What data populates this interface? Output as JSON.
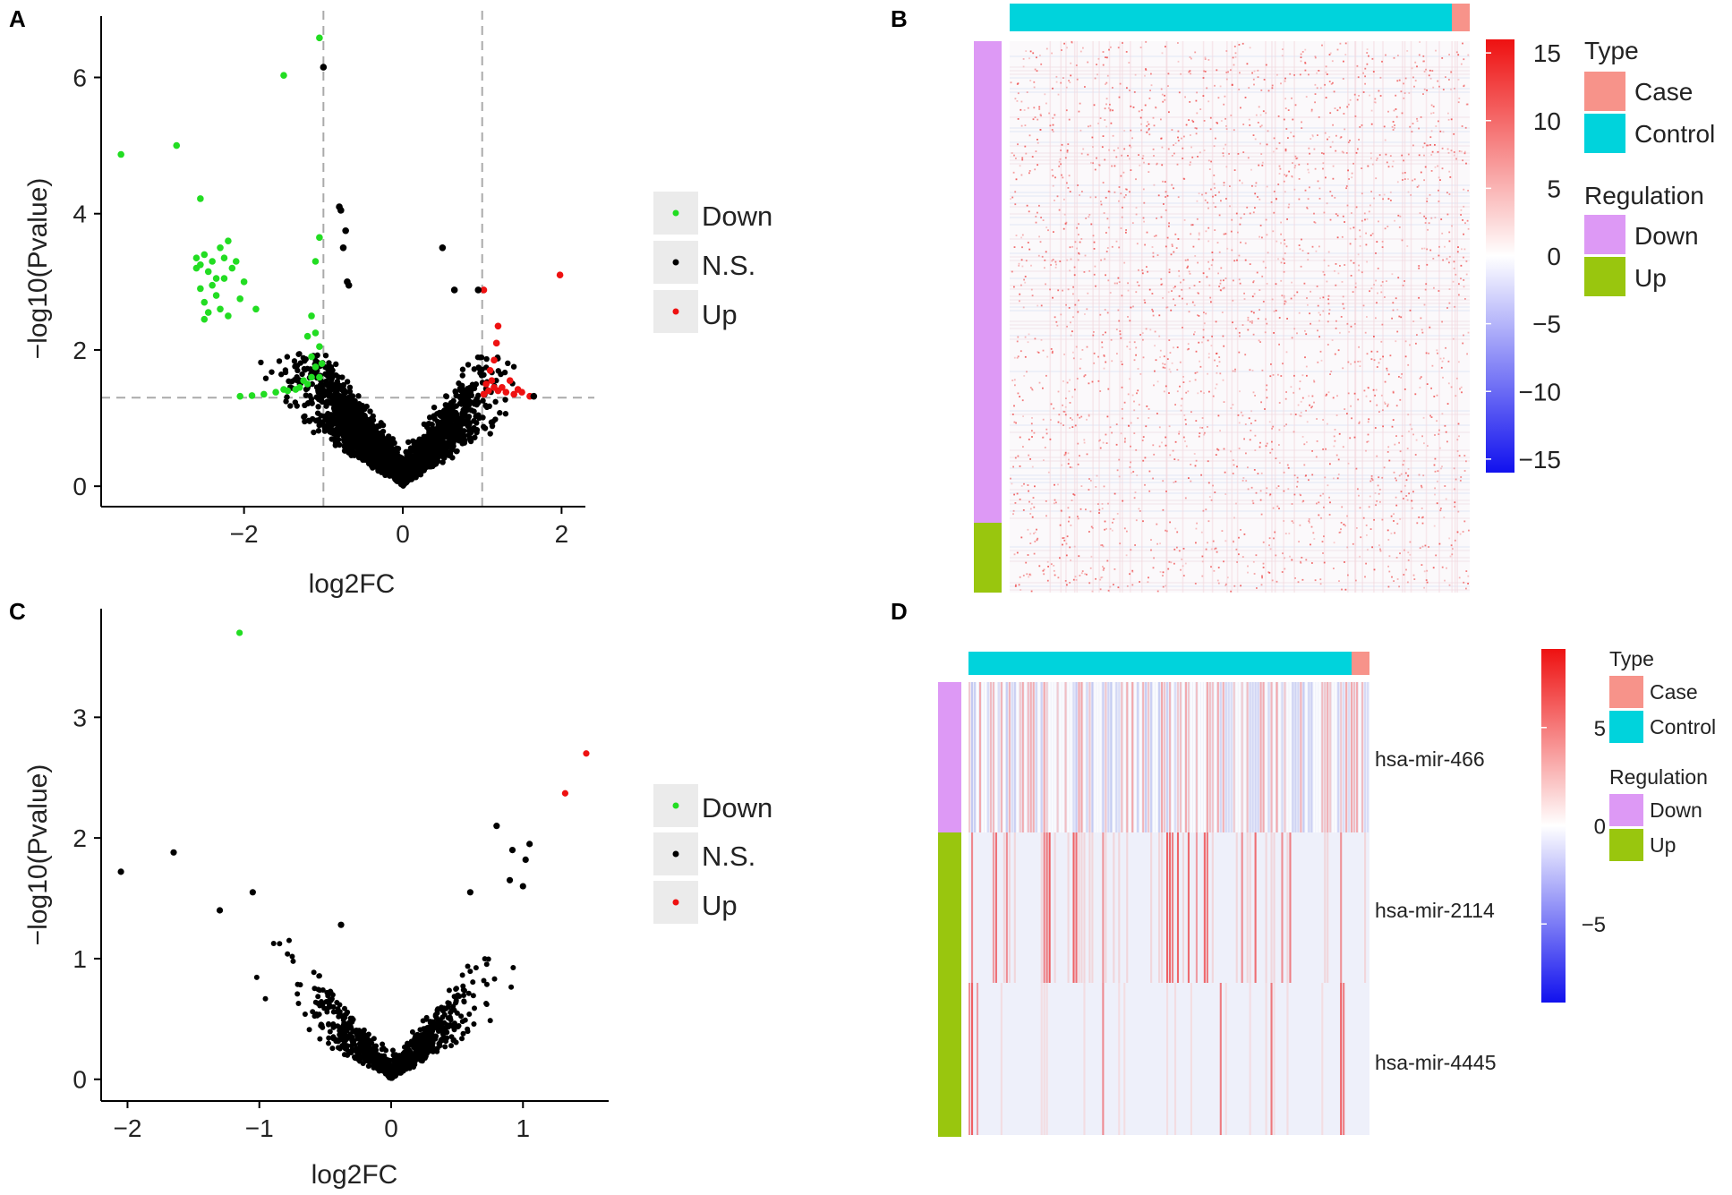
{
  "figure": {
    "panel_labels": [
      "A",
      "B",
      "C",
      "D"
    ]
  },
  "chart_data": [
    {
      "panel": "A",
      "type": "scatter",
      "subtype": "volcano",
      "xlabel": "log2FC",
      "ylabel": "−log10(Pvalue)",
      "xlim": [
        -3.8,
        2.3
      ],
      "ylim": [
        -0.3,
        6.9
      ],
      "xticks": [
        -2,
        0,
        2
      ],
      "yticks": [
        0,
        2,
        4,
        6
      ],
      "xtick_labels": [
        "−2",
        "0",
        "2"
      ],
      "ytick_labels": [
        "0",
        "2",
        "4",
        "6"
      ],
      "thresholds": {
        "log2fc": [
          -1,
          1
        ],
        "neg_log10_p": 1.3
      },
      "legend": {
        "position": "right",
        "entries": [
          {
            "label": "Down",
            "color": "#22dd22"
          },
          {
            "label": "N.S.",
            "color": "#000000"
          },
          {
            "label": "Up",
            "color": "#ee1111"
          }
        ]
      },
      "series": [
        {
          "name": "Down",
          "color": "#22dd22",
          "points": [
            [
              -3.55,
              4.87
            ],
            [
              -2.85,
              5.0
            ],
            [
              -2.55,
              4.22
            ],
            [
              -1.5,
              6.03
            ],
            [
              -1.05,
              6.58
            ],
            [
              -2.6,
              3.35
            ],
            [
              -2.55,
              3.25
            ],
            [
              -2.5,
              3.4
            ],
            [
              -2.45,
              3.15
            ],
            [
              -2.4,
              3.3
            ],
            [
              -2.35,
              3.05
            ],
            [
              -2.3,
              3.5
            ],
            [
              -2.25,
              3.35
            ],
            [
              -2.2,
              3.6
            ],
            [
              -2.15,
              3.2
            ],
            [
              -2.55,
              2.9
            ],
            [
              -2.5,
              2.7
            ],
            [
              -2.45,
              2.55
            ],
            [
              -2.4,
              2.95
            ],
            [
              -2.35,
              2.8
            ],
            [
              -2.3,
              2.6
            ],
            [
              -2.25,
              3.05
            ],
            [
              -2.2,
              2.5
            ],
            [
              -2.1,
              3.3
            ],
            [
              -2.05,
              2.75
            ],
            [
              -2.0,
              3.0
            ],
            [
              -1.85,
              2.6
            ],
            [
              -2.5,
              2.45
            ],
            [
              -2.6,
              3.2
            ],
            [
              -1.1,
              3.3
            ],
            [
              -1.05,
              3.65
            ],
            [
              -1.15,
              2.5
            ],
            [
              -1.2,
              2.2
            ],
            [
              -1.1,
              2.25
            ],
            [
              -1.05,
              2.05
            ],
            [
              -1.15,
              1.9
            ],
            [
              -1.1,
              1.75
            ],
            [
              -1.05,
              1.6
            ],
            [
              -1.2,
              1.5
            ],
            [
              -1.3,
              1.45
            ],
            [
              -1.45,
              1.4
            ],
            [
              -1.6,
              1.38
            ],
            [
              -1.75,
              1.35
            ],
            [
              -1.9,
              1.33
            ],
            [
              -2.05,
              1.32
            ],
            [
              -1.15,
              1.6
            ],
            [
              -1.02,
              1.8
            ],
            [
              -1.25,
              1.55
            ],
            [
              -1.35,
              1.42
            ],
            [
              -1.5,
              1.42
            ]
          ]
        },
        {
          "name": "Up",
          "color": "#ee1111",
          "points": [
            [
              1.98,
              3.1
            ],
            [
              1.02,
              2.88
            ],
            [
              1.2,
              2.35
            ],
            [
              1.18,
              2.1
            ],
            [
              1.15,
              1.85
            ],
            [
              1.1,
              1.7
            ],
            [
              1.05,
              1.5
            ],
            [
              1.08,
              1.4
            ],
            [
              1.12,
              1.55
            ],
            [
              1.2,
              1.4
            ],
            [
              1.25,
              1.45
            ],
            [
              1.3,
              1.38
            ],
            [
              1.4,
              1.35
            ],
            [
              1.5,
              1.38
            ],
            [
              1.6,
              1.32
            ],
            [
              1.02,
              1.35
            ],
            [
              1.15,
              1.45
            ],
            [
              1.35,
              1.55
            ],
            [
              1.45,
              1.42
            ]
          ]
        },
        {
          "name": "N.S.",
          "color": "#000000",
          "description": "dense V-shaped cloud of several thousand non-significant genes centered near (0, 0)",
          "highlighted_points": [
            [
              -1.0,
              6.15
            ],
            [
              -0.8,
              4.1
            ],
            [
              -0.78,
              4.05
            ],
            [
              -0.72,
              3.75
            ],
            [
              -0.75,
              3.5
            ],
            [
              -0.7,
              3.0
            ],
            [
              -0.68,
              2.95
            ],
            [
              0.5,
              3.5
            ],
            [
              0.65,
              2.88
            ],
            [
              0.95,
              2.88
            ],
            [
              1.65,
              1.32
            ]
          ]
        }
      ]
    },
    {
      "panel": "B",
      "type": "heatmap",
      "color_scale": {
        "min": -16,
        "max": 16,
        "low": "#1111ee",
        "mid": "#ffffff",
        "high": "#ee1111",
        "ticks": [
          15,
          10,
          5,
          0,
          -5,
          -10,
          -15
        ],
        "tick_labels": [
          "15",
          "10",
          "5",
          "0",
          "−5",
          "−10",
          "−15"
        ]
      },
      "column_annotation": {
        "name": "Type",
        "groups": [
          {
            "label": "Control",
            "fraction": 0.96
          },
          {
            "label": "Case",
            "fraction": 0.04
          }
        ]
      },
      "row_annotation": {
        "name": "Regulation",
        "groups": [
          {
            "label": "Down",
            "fraction": 0.88
          },
          {
            "label": "Up",
            "fraction": 0.12
          }
        ]
      },
      "legend": {
        "type_title": "Type",
        "type_entries": [
          {
            "label": "Case",
            "color": "#f7938a"
          },
          {
            "label": "Control",
            "color": "#00d3dc"
          }
        ],
        "regulation_title": "Regulation",
        "regulation_entries": [
          {
            "label": "Down",
            "color": "#dd99f5"
          },
          {
            "label": "Up",
            "color": "#99c60e"
          }
        ]
      },
      "description": "mostly near-zero (white) values with sparse light-red speckles"
    },
    {
      "panel": "C",
      "type": "scatter",
      "subtype": "volcano",
      "xlabel": "log2FC",
      "ylabel": "−log10(Pvalue)",
      "xlim": [
        -2.2,
        1.65
      ],
      "ylim": [
        -0.18,
        3.9
      ],
      "xticks": [
        -2,
        -1,
        0,
        1
      ],
      "yticks": [
        0,
        1,
        2,
        3
      ],
      "xtick_labels": [
        "−2",
        "−1",
        "0",
        "1"
      ],
      "ytick_labels": [
        "0",
        "1",
        "2",
        "3"
      ],
      "legend": {
        "position": "right",
        "entries": [
          {
            "label": "Down",
            "color": "#22dd22"
          },
          {
            "label": "N.S.",
            "color": "#000000"
          },
          {
            "label": "Up",
            "color": "#ee1111"
          }
        ]
      },
      "series": [
        {
          "name": "Down",
          "color": "#22dd22",
          "points": [
            [
              -1.15,
              3.7
            ]
          ]
        },
        {
          "name": "Up",
          "color": "#ee1111",
          "points": [
            [
              1.48,
              2.7
            ],
            [
              1.32,
              2.37
            ]
          ]
        },
        {
          "name": "N.S.",
          "color": "#000000",
          "description": "V-shaped cloud of non-significant miRNAs centered at (0, 0)",
          "highlighted_points": [
            [
              -2.05,
              1.72
            ],
            [
              -1.65,
              1.88
            ],
            [
              -1.3,
              1.4
            ],
            [
              -1.05,
              1.55
            ],
            [
              -0.38,
              1.28
            ],
            [
              0.8,
              2.1
            ],
            [
              0.92,
              1.9
            ],
            [
              1.05,
              1.95
            ],
            [
              1.02,
              1.82
            ],
            [
              0.9,
              1.65
            ],
            [
              0.6,
              1.55
            ],
            [
              1.0,
              1.6
            ]
          ]
        }
      ]
    },
    {
      "panel": "D",
      "type": "heatmap",
      "rows": [
        "hsa-mir-466",
        "hsa-mir-2114",
        "hsa-mir-4445"
      ],
      "color_scale": {
        "min": -9,
        "max": 9,
        "low": "#1111ee",
        "mid": "#ffffff",
        "high": "#ee1111",
        "ticks": [
          5,
          0,
          -5
        ],
        "tick_labels": [
          "5",
          "0",
          "−5"
        ]
      },
      "column_annotation": {
        "name": "Type",
        "groups": [
          {
            "label": "Control",
            "fraction": 0.955
          },
          {
            "label": "Case",
            "fraction": 0.045
          }
        ]
      },
      "row_annotation": {
        "name": "Regulation",
        "row_groups": [
          "Down",
          "Up",
          "Up"
        ]
      },
      "legend": {
        "type_title": "Type",
        "type_entries": [
          {
            "label": "Case",
            "color": "#f7938a"
          },
          {
            "label": "Control",
            "color": "#00d3dc"
          }
        ],
        "regulation_title": "Regulation",
        "regulation_entries": [
          {
            "label": "Down",
            "color": "#dd99f5"
          },
          {
            "label": "Up",
            "color": "#99c60e"
          }
        ]
      },
      "description": "three rows of per-sample values; hsa-mir-466 alternates light red/blue, the Up rows show sparse strong red stripes"
    }
  ]
}
